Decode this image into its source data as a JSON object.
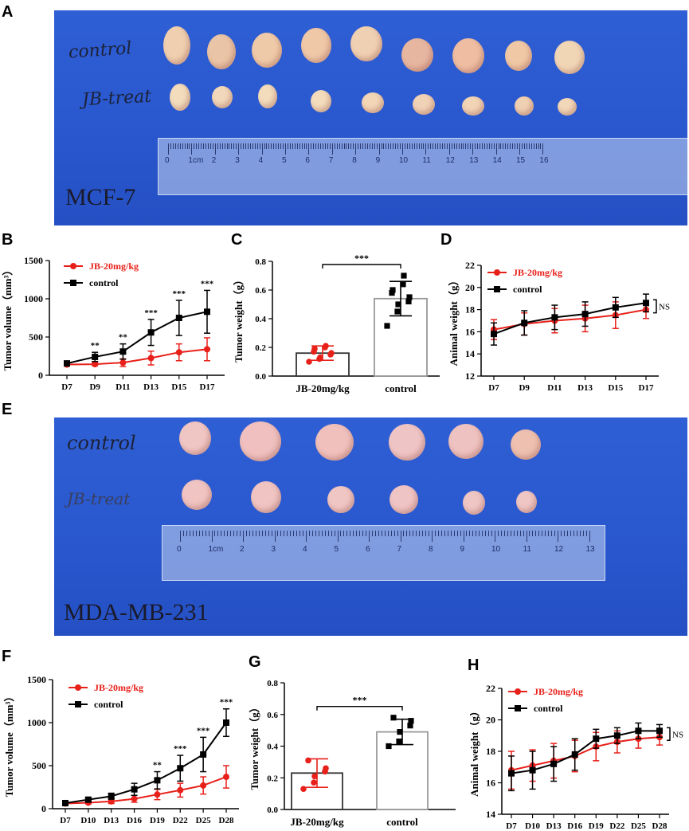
{
  "figure": {
    "panels": {
      "A": "A",
      "B": "B",
      "C": "C",
      "D": "D",
      "E": "E",
      "F": "F",
      "G": "G",
      "H": "H"
    }
  },
  "photos": {
    "A": {
      "cell_line": "MCF-7",
      "row1": "control",
      "row2": "JB-treat",
      "ruler_labels": [
        "0",
        "1cm",
        "2",
        "3",
        "4",
        "5",
        "6",
        "7",
        "8",
        "9",
        "10",
        "11",
        "12",
        "13",
        "14",
        "15",
        "16"
      ]
    },
    "E": {
      "cell_line": "MDA-MB-231",
      "row1": "control",
      "row2": "JB-treat",
      "ruler_labels": [
        "0",
        "1cm",
        "2",
        "3",
        "4",
        "5",
        "6",
        "7",
        "8",
        "9",
        "10",
        "11",
        "12",
        "13"
      ]
    }
  },
  "chart_data": [
    {
      "id": "B",
      "type": "line",
      "ylabel": "Tumor volume（mm³）",
      "x": [
        "D7",
        "D9",
        "D11",
        "D13",
        "D15",
        "D17"
      ],
      "ylim": [
        0,
        1500
      ],
      "yticks": [
        0,
        500,
        1000,
        1500
      ],
      "series": [
        {
          "name": "JB-20mg/kg",
          "color": "#e8201a",
          "marker": "circle",
          "values": [
            140,
            145,
            165,
            225,
            300,
            340
          ],
          "errors": [
            20,
            20,
            50,
            90,
            110,
            150
          ]
        },
        {
          "name": "control",
          "color": "#000000",
          "marker": "square",
          "values": [
            155,
            240,
            310,
            560,
            750,
            830
          ],
          "errors": [
            25,
            60,
            100,
            170,
            230,
            280
          ]
        }
      ],
      "significance": [
        "",
        "**",
        "**",
        "***",
        "***",
        "***"
      ]
    },
    {
      "id": "C",
      "type": "bar",
      "ylabel": "Tumor weight（g）",
      "categories": [
        "JB-20mg/kg",
        "control"
      ],
      "values": [
        0.16,
        0.54
      ],
      "errors": [
        0.05,
        0.12
      ],
      "ylim": [
        0,
        0.8
      ],
      "yticks": [
        0.0,
        0.2,
        0.4,
        0.6,
        0.8
      ],
      "points": [
        [
          0.1,
          0.12,
          0.13,
          0.15,
          0.16,
          0.17,
          0.19,
          0.2,
          0.21
        ],
        [
          0.35,
          0.45,
          0.5,
          0.52,
          0.55,
          0.58,
          0.6,
          0.64,
          0.7
        ]
      ],
      "colors": [
        "#e8201a",
        "#000000"
      ],
      "significance": "***"
    },
    {
      "id": "D",
      "type": "line",
      "ylabel": "Animal weight（g）",
      "x": [
        "D7",
        "D9",
        "D11",
        "D13",
        "D15",
        "D17"
      ],
      "ylim": [
        12,
        22
      ],
      "yticks": [
        12,
        14,
        16,
        18,
        20,
        22
      ],
      "series": [
        {
          "name": "JB-20mg/kg",
          "color": "#e8201a",
          "marker": "circle",
          "values": [
            16.2,
            16.7,
            17.0,
            17.2,
            17.5,
            18.0
          ],
          "errors": [
            0.9,
            1.0,
            1.1,
            1.2,
            1.2,
            0.8
          ]
        },
        {
          "name": "control",
          "color": "#000000",
          "marker": "square",
          "values": [
            15.8,
            16.8,
            17.3,
            17.6,
            18.2,
            18.6
          ],
          "errors": [
            1.0,
            1.1,
            1.1,
            1.1,
            0.9,
            0.8
          ]
        }
      ],
      "ns_label": "NS"
    },
    {
      "id": "F",
      "type": "line",
      "ylabel": "Tumor volume（mm³）",
      "x": [
        "D7",
        "D10",
        "D13",
        "D16",
        "D19",
        "D22",
        "D25",
        "D28"
      ],
      "ylim": [
        0,
        1500
      ],
      "yticks": [
        0,
        500,
        1000,
        1500
      ],
      "series": [
        {
          "name": "JB-20mg/kg",
          "color": "#e8201a",
          "marker": "circle",
          "values": [
            60,
            70,
            85,
            115,
            165,
            215,
            270,
            370
          ],
          "errors": [
            10,
            15,
            25,
            40,
            60,
            80,
            100,
            130
          ]
        },
        {
          "name": "control",
          "color": "#000000",
          "marker": "square",
          "values": [
            65,
            105,
            145,
            225,
            330,
            470,
            630,
            1000
          ],
          "errors": [
            10,
            20,
            35,
            70,
            100,
            150,
            200,
            160
          ]
        }
      ],
      "significance": [
        "",
        "",
        "",
        "",
        "**",
        "***",
        "***",
        "***"
      ]
    },
    {
      "id": "G",
      "type": "bar",
      "ylabel": "Tumor weight（g）",
      "categories": [
        "JB-20mg/kg",
        "control"
      ],
      "values": [
        0.23,
        0.49
      ],
      "errors": [
        0.09,
        0.08
      ],
      "ylim": [
        0,
        0.8
      ],
      "yticks": [
        0.0,
        0.2,
        0.4,
        0.6,
        0.8
      ],
      "points": [
        [
          0.13,
          0.17,
          0.21,
          0.24,
          0.26,
          0.31
        ],
        [
          0.4,
          0.43,
          0.49,
          0.53,
          0.56,
          0.58
        ]
      ],
      "colors": [
        "#e8201a",
        "#000000"
      ],
      "significance": "***"
    },
    {
      "id": "H",
      "type": "line",
      "ylabel": "Animal weight（g）",
      "x": [
        "D7",
        "D10",
        "D13",
        "D16",
        "D19",
        "D22",
        "D25",
        "D28"
      ],
      "ylim": [
        14,
        22
      ],
      "yticks": [
        14,
        16,
        18,
        20,
        22
      ],
      "series": [
        {
          "name": "JB-20mg/kg",
          "color": "#e8201a",
          "marker": "circle",
          "values": [
            16.8,
            17.1,
            17.4,
            17.7,
            18.3,
            18.6,
            18.8,
            18.9
          ],
          "errors": [
            1.2,
            1.0,
            1.1,
            1.0,
            0.9,
            0.7,
            0.6,
            0.5
          ]
        },
        {
          "name": "control",
          "color": "#000000",
          "marker": "square",
          "values": [
            16.6,
            16.8,
            17.2,
            17.8,
            18.8,
            19.0,
            19.3,
            19.3
          ],
          "errors": [
            1.1,
            1.2,
            1.1,
            1.0,
            0.6,
            0.5,
            0.5,
            0.4
          ]
        }
      ],
      "ns_label": "NS"
    }
  ]
}
